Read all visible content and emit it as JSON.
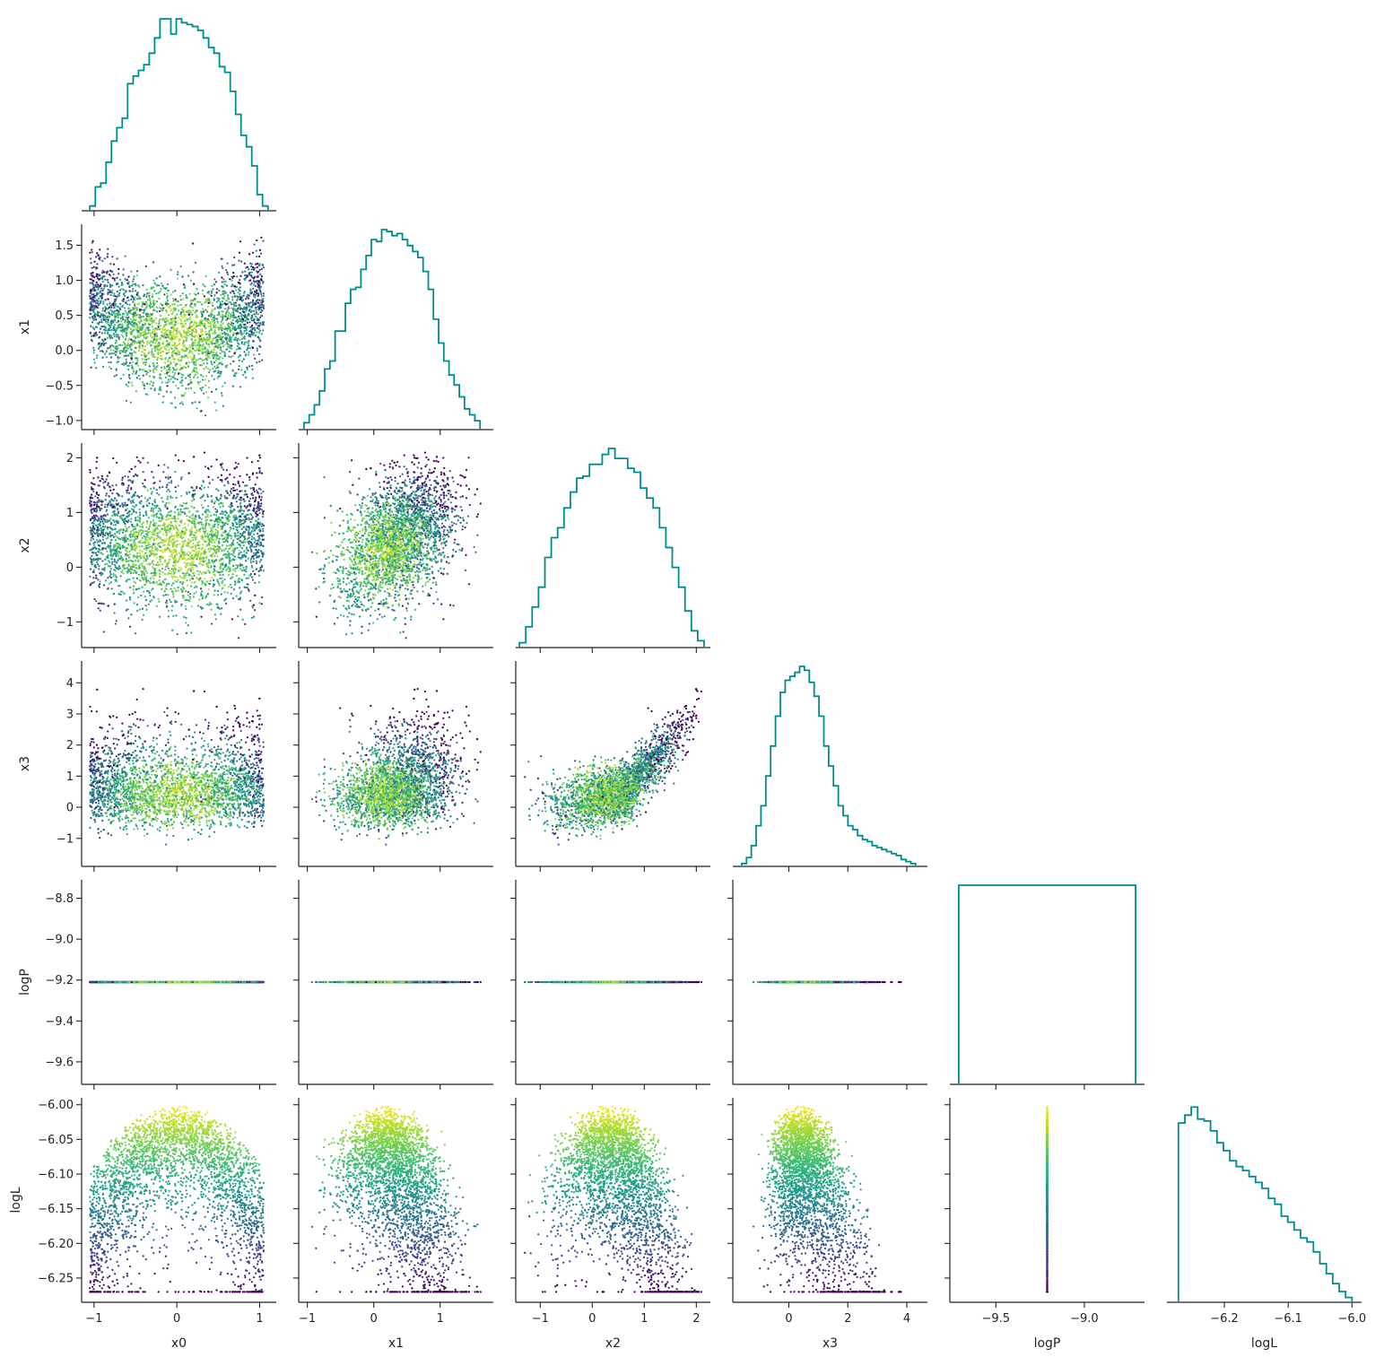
{
  "chart_data": {
    "type": "scatter",
    "layout": "corner",
    "variables": [
      "x0",
      "x1",
      "x2",
      "x3",
      "logP",
      "logL"
    ],
    "colormap": "viridis",
    "color_by": "logL",
    "histogram_color": "#008b8b",
    "grid": false,
    "n_points": 3500,
    "axes": {
      "x0": {
        "lim": [
          -1.15,
          1.2
        ],
        "ticks": [
          -1,
          0,
          1
        ],
        "tick_labels": [
          "−1",
          "0",
          "1"
        ]
      },
      "x1": {
        "lim": [
          -1.13,
          1.8
        ],
        "ticks": [
          -1,
          0,
          1
        ],
        "tick_labels": [
          "−1",
          "0",
          "1"
        ],
        "y_ticks": [
          -1.0,
          -0.5,
          0.0,
          0.5,
          1.0,
          1.5
        ],
        "y_tick_labels": [
          "−1.0",
          "−0.5",
          "0.0",
          "0.5",
          "1.0",
          "1.5"
        ]
      },
      "x2": {
        "lim": [
          -1.47,
          2.27
        ],
        "ticks": [
          -1,
          0,
          1,
          2
        ],
        "tick_labels": [
          "−1",
          "0",
          "1",
          "2"
        ]
      },
      "x3": {
        "lim": [
          -1.9,
          4.7
        ],
        "ticks": [
          0,
          2,
          4
        ],
        "tick_labels": [
          "0",
          "2",
          "4"
        ],
        "y_ticks": [
          -1,
          0,
          1,
          2,
          3,
          4
        ],
        "y_tick_labels": [
          "−1",
          "0",
          "1",
          "2",
          "3",
          "4"
        ]
      },
      "logP": {
        "lim": [
          -9.71,
          -8.71
        ],
        "ticks": [
          -9.6,
          -9.4,
          -9.2,
          -9.0,
          -8.8
        ],
        "tick_labels": [
          "−9.6",
          "−9.4",
          "−9.2",
          "−9.0",
          "−8.8"
        ],
        "x_lim": [
          -9.76,
          -8.66
        ],
        "x_ticks": [
          -9.5,
          -9.0
        ],
        "x_tick_labels": [
          "−9.5",
          "−9.0"
        ]
      },
      "logL": {
        "lim": [
          -6.285,
          -5.99
        ],
        "ticks": [
          -6.25,
          -6.2,
          -6.15,
          -6.1,
          -6.05,
          -6.0
        ],
        "tick_labels": [
          "−6.25",
          "−6.20",
          "−6.15",
          "−6.10",
          "−6.05",
          "−6.00"
        ],
        "x_lim": [
          -6.29,
          -5.985
        ],
        "x_ticks": [
          -6.2,
          -6.1,
          -6.0
        ],
        "x_tick_labels": [
          "−6.2",
          "−6.1",
          "−6.0"
        ]
      }
    },
    "histograms": {
      "x0": {
        "range": [
          -1.05,
          1.1
        ],
        "counts": [
          2,
          12,
          14,
          25,
          36,
          43,
          48,
          66,
          70,
          73,
          76,
          82,
          90,
          100,
          100,
          92,
          100,
          98,
          97,
          96,
          94,
          90,
          85,
          82,
          75,
          72,
          62,
          50,
          39,
          33,
          23,
          8,
          2
        ]
      },
      "x1": {
        "range": [
          -1.05,
          1.6
        ],
        "counts": [
          3,
          7,
          12,
          19,
          30,
          34,
          49,
          49,
          63,
          70,
          71,
          80,
          87,
          95,
          94,
          100,
          99,
          97,
          98,
          95,
          92,
          89,
          86,
          79,
          70,
          55,
          43,
          34,
          27,
          22,
          16,
          10,
          7,
          4
        ]
      },
      "x2": {
        "range": [
          -1.4,
          2.15
        ],
        "counts": [
          2,
          10,
          20,
          30,
          45,
          55,
          60,
          70,
          78,
          85,
          86,
          92,
          92,
          97,
          100,
          95,
          95,
          90,
          88,
          80,
          75,
          70,
          60,
          50,
          40,
          30,
          18,
          8,
          3
        ]
      },
      "x3": {
        "range": [
          -1.6,
          4.3
        ],
        "counts": [
          1,
          4,
          10,
          20,
          30,
          45,
          60,
          75,
          87,
          93,
          95,
          97,
          100,
          98,
          92,
          85,
          75,
          60,
          50,
          40,
          30,
          25,
          20,
          18,
          15,
          13,
          12,
          10,
          9,
          8,
          7,
          6,
          5,
          3,
          2,
          1
        ]
      },
      "logP": {
        "range": [
          -9.71,
          -8.71
        ],
        "counts": [
          100
        ]
      },
      "logL": {
        "range": [
          -6.272,
          -6.0
        ],
        "counts": [
          90,
          94,
          98,
          92,
          91,
          86,
          80,
          76,
          71,
          68,
          66,
          63,
          60,
          57,
          52,
          49,
          43,
          40,
          36,
          32,
          30,
          25,
          19,
          14,
          9,
          5,
          2
        ]
      }
    }
  }
}
